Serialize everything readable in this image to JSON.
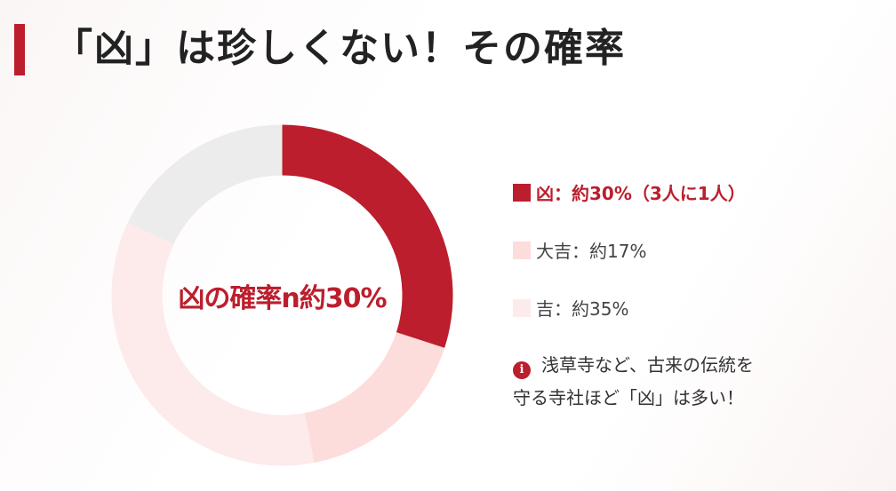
{
  "title": "「凶」は珍しくない！その確率",
  "chart_data": {
    "type": "pie",
    "style": "donut",
    "center_label": "凶の確率n約30%",
    "slices": [
      {
        "value": 30,
        "color": "#bc1e2d"
      },
      {
        "value": 17,
        "color": "#fddcdc"
      },
      {
        "value": 35,
        "color": "#fdeaea"
      },
      {
        "value": 18,
        "color": "#ececec"
      }
    ]
  },
  "legend": {
    "items": [
      {
        "label": "凶：約30%（3人に1人）",
        "color": "#bc1e2d"
      },
      {
        "label": "大吉：約17%",
        "color": "#fddcdc"
      },
      {
        "label": "吉：約35%",
        "color": "#fdeaea"
      }
    ]
  },
  "note": {
    "icon": "info-icon",
    "icon_glyph": "i",
    "line1": "浅草寺など、古来の伝統を",
    "line2": "守る寺社ほど「凶」は多い！"
  }
}
